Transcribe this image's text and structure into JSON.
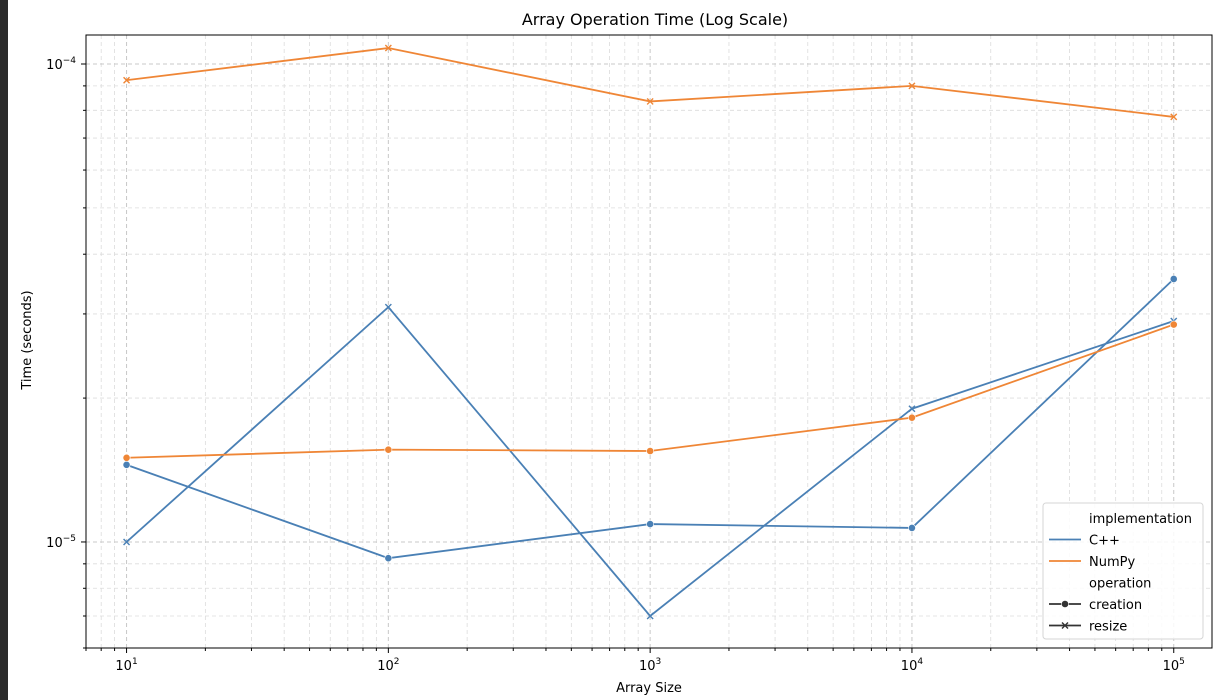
{
  "chart_data": {
    "type": "line",
    "title": "Array Operation Time (Log Scale)",
    "xlabel": "Array Size",
    "ylabel": "Time (seconds)",
    "xscale": "log",
    "yscale": "log",
    "xlim": [
      7,
      140000
    ],
    "ylim": [
      6e-06,
      0.000115
    ],
    "grid": true,
    "x_ticks": [
      {
        "value": 10,
        "base": "10",
        "exp": "1"
      },
      {
        "value": 100,
        "base": "10",
        "exp": "2"
      },
      {
        "value": 1000,
        "base": "10",
        "exp": "3"
      },
      {
        "value": 10000,
        "base": "10",
        "exp": "4"
      },
      {
        "value": 100000,
        "base": "10",
        "exp": "5"
      }
    ],
    "y_ticks": [
      {
        "value": 1e-05,
        "base": "10",
        "exp": "−5"
      },
      {
        "value": 0.0001,
        "base": "10",
        "exp": "−4"
      }
    ],
    "x": [
      10,
      100,
      1000,
      10000,
      100000
    ],
    "series": [
      {
        "name": "C++ creation",
        "implementation": "C++",
        "operation": "creation",
        "color": "#4a80b5",
        "marker": "circle",
        "values": [
          1.45e-05,
          9.25e-06,
          1.09e-05,
          1.07e-05,
          3.55e-05
        ]
      },
      {
        "name": "C++ resize",
        "implementation": "C++",
        "operation": "resize",
        "color": "#4a80b5",
        "marker": "x",
        "values": [
          1e-05,
          3.1e-05,
          7e-06,
          1.9e-05,
          2.9e-05
        ]
      },
      {
        "name": "NumPy creation",
        "implementation": "NumPy",
        "operation": "creation",
        "color": "#ef8636",
        "marker": "circle",
        "values": [
          1.5e-05,
          1.56e-05,
          1.55e-05,
          1.82e-05,
          2.85e-05
        ]
      },
      {
        "name": "NumPy resize",
        "implementation": "NumPy",
        "operation": "resize",
        "color": "#ef8636",
        "marker": "x",
        "values": [
          9.25e-05,
          0.000108,
          8.35e-05,
          9e-05,
          7.75e-05
        ]
      }
    ],
    "legend": {
      "position": "bottom-right",
      "entries": [
        {
          "label": "implementation",
          "kind": "header"
        },
        {
          "label": "C++",
          "kind": "line",
          "color": "#4a80b5"
        },
        {
          "label": "NumPy",
          "kind": "line",
          "color": "#ef8636"
        },
        {
          "label": "operation",
          "kind": "header"
        },
        {
          "label": "creation",
          "kind": "marker",
          "marker": "circle",
          "color": "#333333"
        },
        {
          "label": "resize",
          "kind": "marker",
          "marker": "x",
          "color": "#333333"
        }
      ]
    }
  }
}
